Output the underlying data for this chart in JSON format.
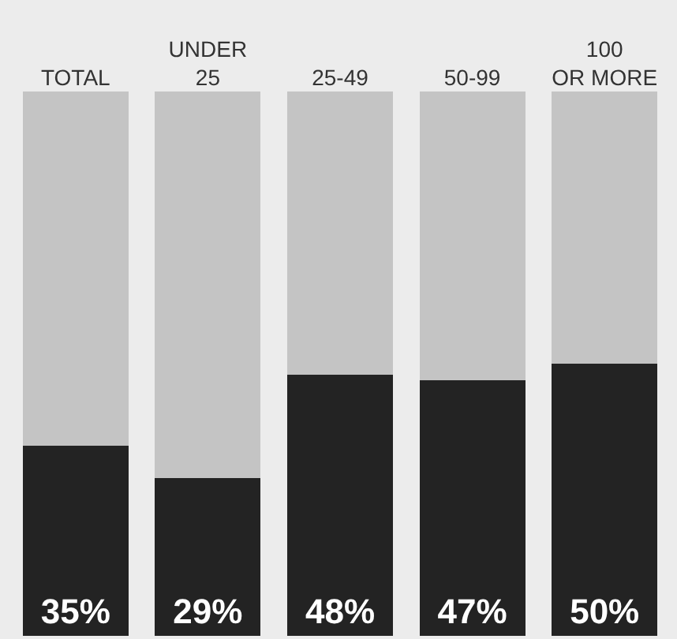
{
  "chart_data": {
    "type": "bar",
    "stacked": true,
    "categories": [
      "TOTAL",
      "UNDER\n25",
      "25-49",
      "50-99",
      "100\nOR MORE"
    ],
    "series": [
      {
        "color": "#232323",
        "values": [
          35,
          29,
          48,
          47,
          50
        ],
        "value_labels": [
          "35%",
          "29%",
          "48%",
          "47%",
          "50%"
        ]
      },
      {
        "color": "#c4c4c4",
        "values": [
          65,
          71,
          52,
          53,
          50
        ]
      }
    ],
    "ylim": [
      0,
      100
    ],
    "tick_labels": "x"
  }
}
